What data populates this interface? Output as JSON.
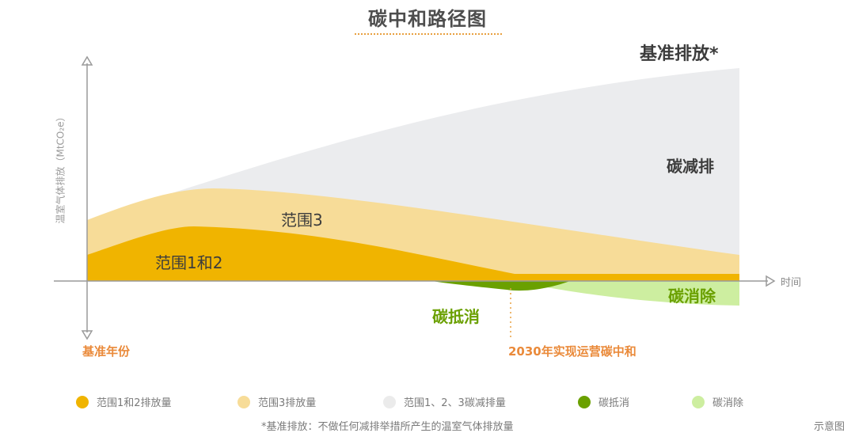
{
  "title": "碳中和路径图",
  "y_axis_label": "温室气体排放（MtCO₂e）",
  "x_axis_label": "时间",
  "labels": {
    "baseline": "基准排放*",
    "reduction": "碳减排",
    "scope3": "范围3",
    "scope12": "范围1和2",
    "offset": "碳抵消",
    "removal": "碳消除",
    "base_year": "基准年份",
    "neutral_2030": "2030年实现运营碳中和"
  },
  "legend": [
    {
      "label": "范围1和2排放量",
      "color": "#f0b400"
    },
    {
      "label": "范围3排放量",
      "color": "#f7dc98"
    },
    {
      "label": "范围1、2、3碳减排量",
      "color": "#ebebeb"
    },
    {
      "label": "碳抵消",
      "color": "#6aa000"
    },
    {
      "label": "碳消除",
      "color": "#cdeea0"
    }
  ],
  "footnote": "*基准排放：不做任何减排举措所产生的温室气体排放量",
  "note": "示意图",
  "colors": {
    "scope12": "#f0b400",
    "scope3": "#f7dc98",
    "reduction": "#ebecee",
    "offset": "#6aa000",
    "removal": "#cdeea0",
    "axis": "#9a9a9a",
    "accent": "#ea8a3a"
  }
}
